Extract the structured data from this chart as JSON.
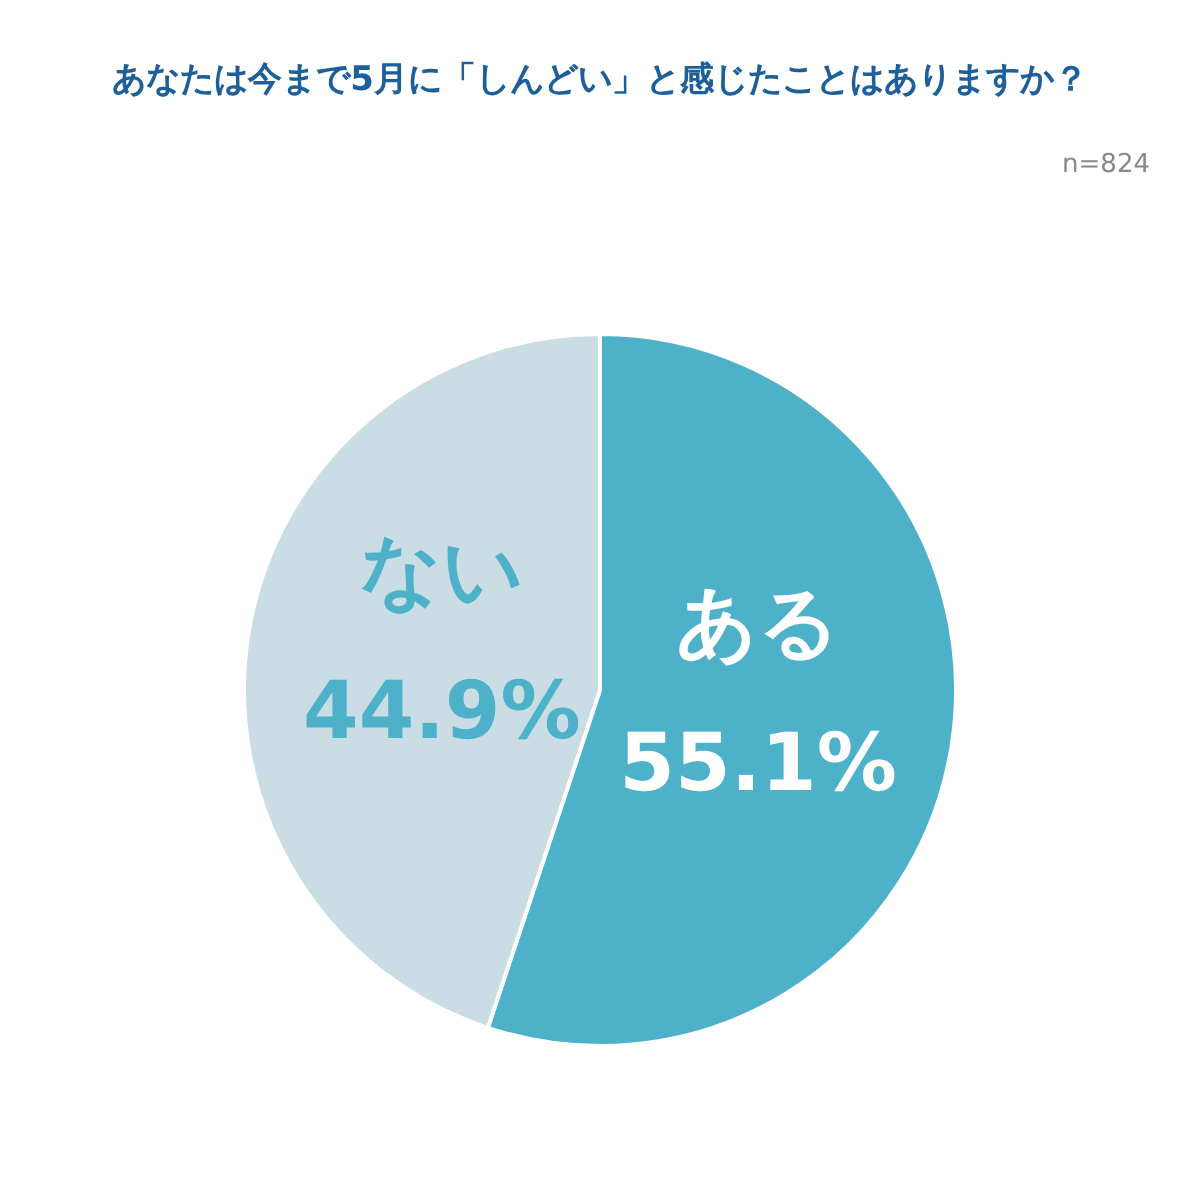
{
  "chart_data": {
    "type": "pie",
    "title": "あなたは今まで5月に「しんどい」と感じたことはありますか？",
    "annotations": [
      "n=824"
    ],
    "categories": [
      "ある",
      "ない"
    ],
    "values": [
      55.1,
      44.9
    ],
    "value_labels": [
      "55.1%",
      "44.9%"
    ],
    "colors": [
      "#4cb1c9",
      "#cbdde4"
    ]
  }
}
